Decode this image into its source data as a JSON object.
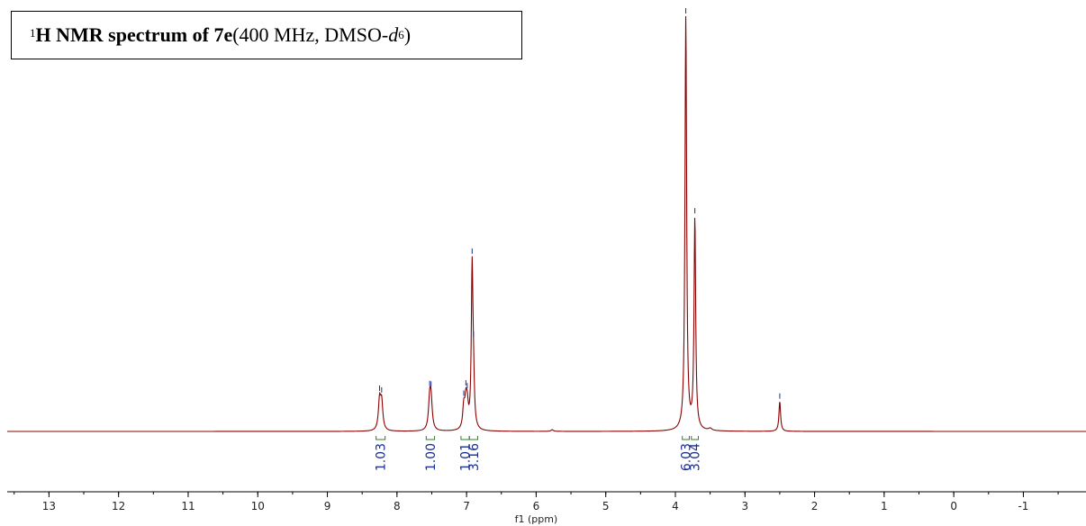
{
  "chart_data": {
    "type": "line",
    "title": {
      "sup": "1",
      "bold": "H NMR spectrum of 7e",
      "normal": " (400 MHz, DMSO-",
      "italic": "d",
      "sub": "6",
      "close": ")"
    },
    "xlabel": "f1 (ppm)",
    "xlim": [
      13.6,
      -1.9
    ],
    "x_reversed": true,
    "ticks": [
      13,
      12,
      11,
      10,
      9,
      8,
      7,
      6,
      5,
      4,
      3,
      2,
      1,
      0,
      -1
    ],
    "tick_labels": [
      "13",
      "12",
      "11",
      "10",
      "9",
      "8",
      "7",
      "6",
      "5",
      "4",
      "3",
      "2",
      "1",
      "0",
      "-1"
    ],
    "grid": false,
    "line_color": "#8b0000",
    "integral_label_color": "#1a2f8f",
    "integral_bracket_color": "#2e7d32",
    "peak_marker_color": "#1a2f8f",
    "peaks": [
      {
        "ppm": 8.25,
        "height": 0.071,
        "width": 0.02
      },
      {
        "ppm": 8.22,
        "height": 0.065,
        "width": 0.02
      },
      {
        "ppm": 7.53,
        "height": 0.069,
        "width": 0.02
      },
      {
        "ppm": 7.51,
        "height": 0.066,
        "width": 0.02
      },
      {
        "ppm": 7.04,
        "height": 0.052,
        "width": 0.018
      },
      {
        "ppm": 7.01,
        "height": 0.058,
        "width": 0.018
      },
      {
        "ppm": 6.99,
        "height": 0.048,
        "width": 0.018
      },
      {
        "ppm": 6.92,
        "height": 0.385,
        "width": 0.014
      },
      {
        "ppm": 6.9,
        "height": 0.09,
        "width": 0.014
      },
      {
        "ppm": 5.77,
        "height": 0.004,
        "width": 0.02
      },
      {
        "ppm": 3.85,
        "height": 1.0,
        "width": 0.014
      },
      {
        "ppm": 3.72,
        "height": 0.507,
        "width": 0.014
      },
      {
        "ppm": 3.5,
        "height": 0.005,
        "width": 0.03
      },
      {
        "ppm": 2.5,
        "height": 0.072,
        "width": 0.014
      }
    ],
    "peak_markers": [
      8.25,
      8.22,
      7.53,
      7.51,
      7.04,
      7.01,
      6.99,
      6.92,
      6.9,
      3.85,
      3.72,
      2.5
    ],
    "integrals": [
      {
        "from": 8.3,
        "to": 8.17,
        "label": "1.03"
      },
      {
        "from": 7.58,
        "to": 7.46,
        "label": "1.00"
      },
      {
        "from": 7.08,
        "to": 6.96,
        "label": "1.01"
      },
      {
        "from": 6.96,
        "to": 6.84,
        "label": "3.16"
      },
      {
        "from": 3.9,
        "to": 3.8,
        "label": "6.03"
      },
      {
        "from": 3.77,
        "to": 3.67,
        "label": "3.04"
      }
    ]
  }
}
